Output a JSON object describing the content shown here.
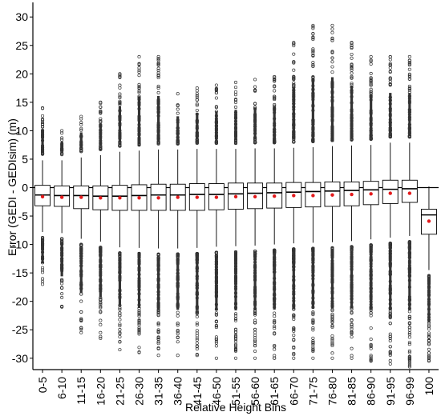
{
  "chart_data": {
    "type": "box",
    "xlabel": "Relative Height Bins",
    "ylabel": "Error (GEDI - GEDIsim) (m)",
    "ylim": [
      -32,
      32
    ],
    "yticks": [
      -30,
      -25,
      -20,
      -15,
      -10,
      -5,
      0,
      5,
      10,
      15,
      20,
      25,
      30
    ],
    "reference_line_y": 0,
    "mean_marker_color": "#e31a1c",
    "categories": [
      "0-5",
      "6-10",
      "11-15",
      "16-20",
      "21-25",
      "26-30",
      "31-35",
      "36-40",
      "41-45",
      "46-50",
      "51-55",
      "56-60",
      "61-65",
      "66-70",
      "71-75",
      "76-80",
      "81-85",
      "86-90",
      "91-95",
      "96-99",
      "100"
    ],
    "boxes": [
      {
        "q1": -3.2,
        "median": -1.3,
        "q3": 0.4,
        "whisker_low": -7.8,
        "whisker_high": 4.8,
        "mean": -1.6,
        "outlier_min": -17,
        "outlier_max": 14
      },
      {
        "q1": -3.3,
        "median": -1.4,
        "q3": 0.3,
        "whisker_low": -8.0,
        "whisker_high": 4.8,
        "mean": -1.7,
        "outlier_min": -21,
        "outlier_max": 10
      },
      {
        "q1": -3.7,
        "median": -1.4,
        "q3": 0.3,
        "whisker_low": -9.0,
        "whisker_high": 5.3,
        "mean": -1.7,
        "outlier_min": -25.5,
        "outlier_max": 12.5
      },
      {
        "q1": -3.9,
        "median": -1.5,
        "q3": 0.3,
        "whisker_low": -9.5,
        "whisker_high": 5.7,
        "mean": -1.8,
        "outlier_min": -26.5,
        "outlier_max": 15
      },
      {
        "q1": -4.0,
        "median": -1.5,
        "q3": 0.4,
        "whisker_low": -10.5,
        "whisker_high": 6.3,
        "mean": -1.8,
        "outlier_min": -28.5,
        "outlier_max": 20
      },
      {
        "q1": -4.0,
        "median": -1.4,
        "q3": 0.5,
        "whisker_low": -10.6,
        "whisker_high": 6.5,
        "mean": -1.8,
        "outlier_min": -29,
        "outlier_max": 23
      },
      {
        "q1": -4.0,
        "median": -1.3,
        "q3": 0.6,
        "whisker_low": -10.7,
        "whisker_high": 6.7,
        "mean": -1.8,
        "outlier_min": -29.5,
        "outlier_max": 23
      },
      {
        "q1": -4.0,
        "median": -1.3,
        "q3": 0.6,
        "whisker_low": -10.7,
        "whisker_high": 6.7,
        "mean": -1.7,
        "outlier_min": -29.5,
        "outlier_max": 16.5
      },
      {
        "q1": -4.0,
        "median": -1.2,
        "q3": 0.7,
        "whisker_low": -10.6,
        "whisker_high": 6.8,
        "mean": -1.7,
        "outlier_min": -29.5,
        "outlier_max": 17.5
      },
      {
        "q1": -3.9,
        "median": -1.2,
        "q3": 0.7,
        "whisker_low": -10.4,
        "whisker_high": 6.8,
        "mean": -1.7,
        "outlier_min": -30,
        "outlier_max": 18
      },
      {
        "q1": -3.8,
        "median": -1.1,
        "q3": 0.8,
        "whisker_low": -10.3,
        "whisker_high": 6.8,
        "mean": -1.6,
        "outlier_min": -30,
        "outlier_max": 18.5
      },
      {
        "q1": -3.7,
        "median": -1.0,
        "q3": 0.8,
        "whisker_low": -10.2,
        "whisker_high": 6.9,
        "mean": -1.6,
        "outlier_min": -30,
        "outlier_max": 19
      },
      {
        "q1": -3.6,
        "median": -0.9,
        "q3": 0.8,
        "whisker_low": -10.0,
        "whisker_high": 6.9,
        "mean": -1.5,
        "outlier_min": -30,
        "outlier_max": 19.5
      },
      {
        "q1": -3.5,
        "median": -0.8,
        "q3": 0.9,
        "whisker_low": -9.8,
        "whisker_high": 7.0,
        "mean": -1.4,
        "outlier_min": -30,
        "outlier_max": 25.5
      },
      {
        "q1": -3.4,
        "median": -0.7,
        "q3": 0.9,
        "whisker_low": -9.7,
        "whisker_high": 7.1,
        "mean": -1.4,
        "outlier_min": -30,
        "outlier_max": 28.5
      },
      {
        "q1": -3.3,
        "median": -0.6,
        "q3": 1.0,
        "whisker_low": -9.6,
        "whisker_high": 7.3,
        "mean": -1.3,
        "outlier_min": -30,
        "outlier_max": 28.5
      },
      {
        "q1": -3.2,
        "median": -0.5,
        "q3": 1.0,
        "whisker_low": -9.4,
        "whisker_high": 7.4,
        "mean": -1.2,
        "outlier_min": -30,
        "outlier_max": 25.5
      },
      {
        "q1": -3.0,
        "median": -0.4,
        "q3": 1.1,
        "whisker_low": -9.1,
        "whisker_high": 7.5,
        "mean": -1.1,
        "outlier_min": -30.5,
        "outlier_max": 23
      },
      {
        "q1": -2.8,
        "median": -0.3,
        "q3": 1.3,
        "whisker_low": -8.8,
        "whisker_high": 7.9,
        "mean": -1.0,
        "outlier_min": -31,
        "outlier_max": 23
      },
      {
        "q1": -2.6,
        "median": -0.2,
        "q3": 1.3,
        "whisker_low": -8.5,
        "whisker_high": 7.9,
        "mean": -1.0,
        "outlier_min": -31.5,
        "outlier_max": 23
      },
      {
        "q1": -8.2,
        "median": -4.8,
        "q3": -3.8,
        "whisker_low": -14.5,
        "whisker_high": 0.2,
        "mean": -5.9,
        "outlier_min": -30.5,
        "outlier_max": 0
      }
    ]
  }
}
